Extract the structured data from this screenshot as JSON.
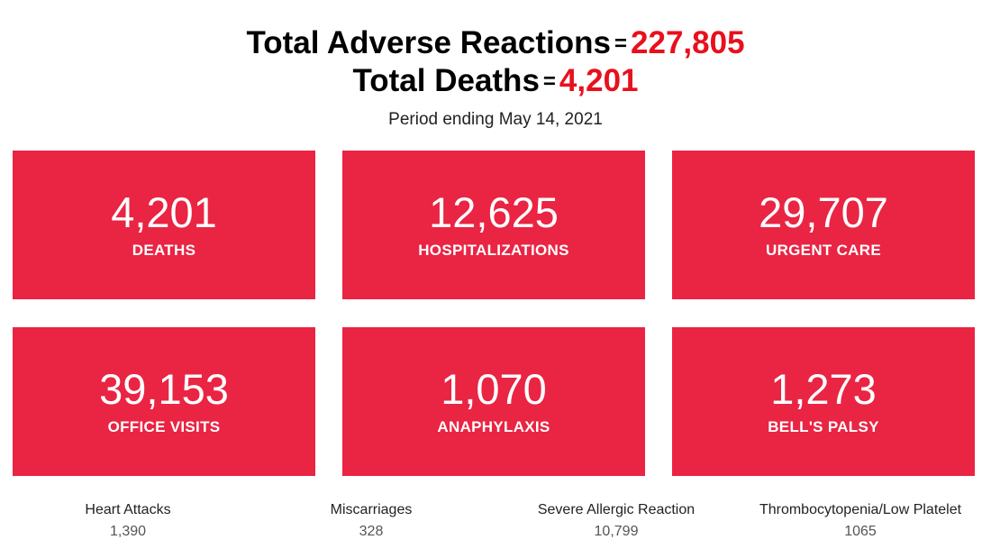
{
  "header": {
    "line1_label": "Total Adverse Reactions",
    "line1_eq": "=",
    "line1_value": "227,805",
    "line2_label": "Total Deaths",
    "line2_eq": "=",
    "line2_value": "4,201",
    "period": "Period ending May 14, 2021",
    "accent_color": "#e8101d"
  },
  "cards": [
    {
      "value": "4,201",
      "label": "DEATHS"
    },
    {
      "value": "12,625",
      "label": "HOSPITALIZATIONS"
    },
    {
      "value": "29,707",
      "label": "URGENT CARE"
    },
    {
      "value": "39,153",
      "label": "OFFICE VISITS"
    },
    {
      "value": "1,070",
      "label": "ANAPHYLAXIS"
    },
    {
      "value": "1,273",
      "label": "BELL'S PALSY"
    }
  ],
  "card_color": "#ea2443",
  "stats": [
    {
      "label": "Heart Attacks",
      "value": "1,390"
    },
    {
      "label": "Miscarriages",
      "value": "328"
    },
    {
      "label": "Severe Allergic Reaction",
      "value": "10,799"
    },
    {
      "label": "Thrombocytopenia/Low Platelet",
      "value": "1065"
    }
  ]
}
